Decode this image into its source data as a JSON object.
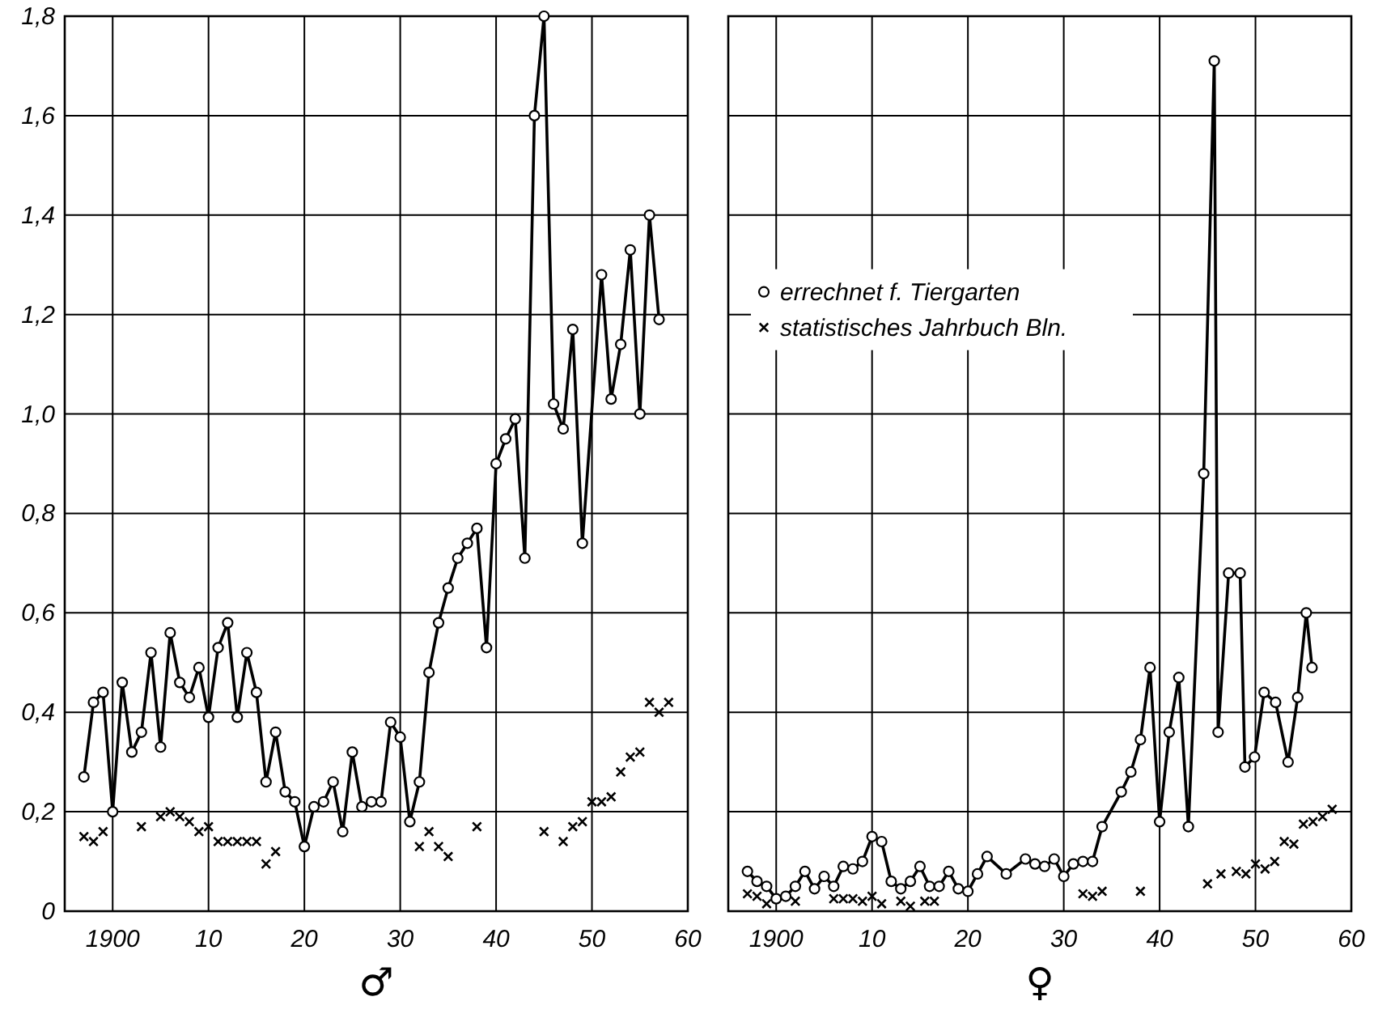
{
  "chart_data": [
    {
      "type": "line",
      "xlabel": "♂",
      "xlim": [
        1895,
        1960
      ],
      "ylim": [
        0,
        1.8
      ],
      "xticks": [
        {
          "value": 1900,
          "label": "1900"
        },
        {
          "value": 1910,
          "label": "10"
        },
        {
          "value": 1920,
          "label": "20"
        },
        {
          "value": 1930,
          "label": "30"
        },
        {
          "value": 1940,
          "label": "40"
        },
        {
          "value": 1950,
          "label": "50"
        },
        {
          "value": 1960,
          "label": "60"
        }
      ],
      "yticks": [
        0,
        {
          "value": 0.2,
          "label": "0,2"
        },
        {
          "value": 0.4,
          "label": "0,4"
        },
        {
          "value": 0.6,
          "label": "0,6"
        },
        {
          "value": 0.8,
          "label": "0,8"
        },
        {
          "value": 1,
          "label": "1,0"
        },
        {
          "value": 1.2,
          "label": "1,2"
        },
        {
          "value": 1.4,
          "label": "1,4"
        },
        {
          "value": 1.6,
          "label": "1,6"
        },
        {
          "value": 1.8,
          "label": "1,8"
        }
      ],
      "grid": true,
      "legend": false,
      "series": [
        {
          "marker": "circle",
          "color": "#000000",
          "x": [
            1897,
            1898,
            1899,
            1900,
            1901,
            1902,
            1903,
            1904,
            1905,
            1906,
            1907,
            1908,
            1909,
            1910,
            1911,
            1912,
            1913,
            1914,
            1915,
            1916,
            1917,
            1918,
            1919,
            1920,
            1921,
            1922,
            1923,
            1924,
            1925,
            1926,
            1927,
            1928,
            1929,
            1930,
            1931,
            1932,
            1933,
            1934,
            1935,
            1936,
            1937,
            1938,
            1939,
            1940,
            1941,
            1942,
            1943,
            1944,
            1945,
            1946,
            1947,
            1948,
            1949,
            1951,
            1952,
            1953,
            1954,
            1955,
            1956,
            1957
          ],
          "values": [
            0.27,
            0.42,
            0.44,
            0.2,
            0.46,
            0.32,
            0.36,
            0.52,
            0.33,
            0.56,
            0.46,
            0.43,
            0.49,
            0.39,
            0.53,
            0.58,
            0.39,
            0.52,
            0.44,
            0.26,
            0.36,
            0.24,
            0.22,
            0.13,
            0.21,
            0.22,
            0.26,
            0.16,
            0.32,
            0.21,
            0.22,
            0.22,
            0.38,
            0.35,
            0.18,
            0.26,
            0.48,
            0.58,
            0.65,
            0.71,
            0.74,
            0.77,
            0.53,
            0.9,
            0.95,
            0.99,
            0.71,
            1.6,
            1.8,
            1.02,
            0.97,
            1.17,
            0.74,
            1.28,
            1.03,
            1.14,
            1.33,
            1.0,
            1.4,
            1.19
          ]
        },
        {
          "type": "scatter",
          "marker": "cross",
          "color": "#000000",
          "x": [
            1897,
            1898,
            1899,
            1903,
            1905,
            1906,
            1907,
            1908,
            1909,
            1910,
            1911,
            1912,
            1913,
            1914,
            1915,
            1916,
            1917,
            1932,
            1933,
            1934,
            1935,
            1938,
            1945,
            1947,
            1948,
            1949,
            1950,
            1951,
            1952,
            1953,
            1954,
            1955,
            1956,
            1957,
            1958
          ],
          "values": [
            0.15,
            0.14,
            0.16,
            0.17,
            0.19,
            0.2,
            0.19,
            0.18,
            0.16,
            0.17,
            0.14,
            0.14,
            0.14,
            0.14,
            0.14,
            0.095,
            0.12,
            0.13,
            0.16,
            0.13,
            0.11,
            0.17,
            0.16,
            0.14,
            0.17,
            0.18,
            0.22,
            0.22,
            0.23,
            0.28,
            0.31,
            0.32,
            0.42,
            0.4,
            0.42
          ]
        }
      ]
    },
    {
      "type": "line",
      "xlabel": "♀",
      "xlim": [
        1895,
        1960
      ],
      "ylim": [
        0,
        1.8
      ],
      "tick_labels": "x",
      "xticks": [
        {
          "value": 1900,
          "label": "1900"
        },
        {
          "value": 1910,
          "label": "10"
        },
        {
          "value": 1920,
          "label": "20"
        },
        {
          "value": 1930,
          "label": "30"
        },
        {
          "value": 1940,
          "label": "40"
        },
        {
          "value": 1950,
          "label": "50"
        },
        {
          "value": 1960,
          "label": "60"
        }
      ],
      "yticks": [
        0,
        0.2,
        0.4,
        0.6,
        0.8,
        1,
        1.2,
        1.4,
        1.6,
        1.8
      ],
      "grid": true,
      "legend": "left",
      "series": [
        {
          "name": "errechnet f. Tiergarten",
          "marker": "circle",
          "color": "#000000",
          "x": [
            1897,
            1898,
            1899,
            1900,
            1901,
            1902,
            1903,
            1904,
            1905,
            1906,
            1907,
            1908,
            1909,
            1910,
            1911,
            1912,
            1913,
            1914,
            1915,
            1916,
            1917,
            1918,
            1919,
            1920,
            1921,
            1922,
            1924,
            1926,
            1927,
            1928,
            1929,
            1930,
            1931,
            1932,
            1933,
            1934,
            1936,
            1937,
            1938,
            1939,
            1940,
            1941,
            1942,
            1943,
            1944.6,
            1945.7,
            1946.1,
            1947.2,
            1948.4,
            1948.9,
            1949.9,
            1950.9,
            1952.1,
            1953.4,
            1954.4,
            1955.3,
            1955.9
          ],
          "values": [
            0.08,
            0.06,
            0.05,
            0.025,
            0.03,
            0.05,
            0.08,
            0.045,
            0.07,
            0.05,
            0.09,
            0.085,
            0.1,
            0.15,
            0.14,
            0.06,
            0.045,
            0.06,
            0.09,
            0.05,
            0.05,
            0.08,
            0.045,
            0.04,
            0.075,
            0.11,
            0.075,
            0.105,
            0.095,
            0.09,
            0.105,
            0.07,
            0.095,
            0.1,
            0.1,
            0.17,
            0.24,
            0.28,
            0.345,
            0.49,
            0.18,
            0.36,
            0.47,
            0.17,
            0.88,
            1.71,
            0.36,
            0.68,
            0.68,
            0.29,
            0.31,
            0.44,
            0.42,
            0.3,
            0.43,
            0.6,
            0.49
          ]
        },
        {
          "type": "scatter",
          "name": "statistisches Jahrbuch Bln.",
          "marker": "cross",
          "color": "#000000",
          "x": [
            1897,
            1898,
            1899,
            1902,
            1906,
            1907,
            1908,
            1909,
            1910,
            1911,
            1913,
            1914,
            1915.5,
            1916.5,
            1932,
            1933,
            1934,
            1938,
            1945,
            1946.4,
            1948,
            1949,
            1950,
            1951,
            1952,
            1953,
            1954,
            1955,
            1956,
            1957,
            1958
          ],
          "values": [
            0.035,
            0.03,
            0.015,
            0.02,
            0.025,
            0.025,
            0.025,
            0.02,
            0.03,
            0.015,
            0.02,
            0.01,
            0.02,
            0.02,
            0.035,
            0.03,
            0.04,
            0.04,
            0.055,
            0.075,
            0.08,
            0.075,
            0.095,
            0.085,
            0.1,
            0.14,
            0.135,
            0.175,
            0.18,
            0.19,
            0.205
          ]
        }
      ]
    }
  ]
}
